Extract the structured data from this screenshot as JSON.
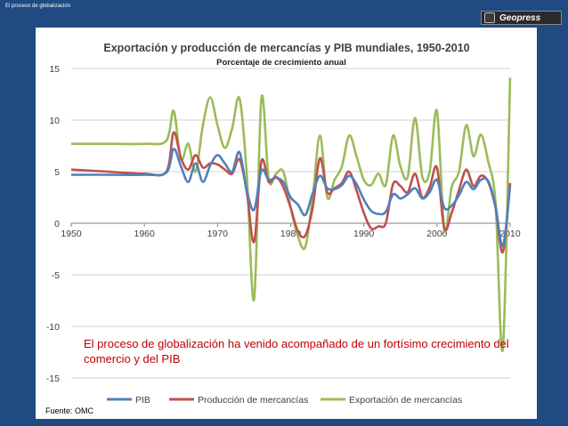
{
  "slide": {
    "title": "El proceso de globalización",
    "logo": "Geopress"
  },
  "source": "Fuente: OMC",
  "annotation": "El proceso de globalización ha venido acompañado de un fortísimo crecimiento del comercio y del PIB",
  "chart_data": {
    "type": "line",
    "title": "Exportación y producción de mercancías y PIB mundiales, 1950-2010",
    "subtitle": "Porcentaje de crecimiento anual",
    "xlabel": "",
    "ylabel": "",
    "xlim": [
      1950,
      2010
    ],
    "ylim": [
      -15,
      15
    ],
    "x_ticks": [
      1950,
      1960,
      1970,
      1980,
      1990,
      2000,
      2010
    ],
    "y_ticks": [
      15,
      10,
      5,
      0,
      -5,
      -10,
      -15
    ],
    "grid": true,
    "legend_position": "bottom",
    "series": [
      {
        "name": "PIB",
        "color": "#4f81bd",
        "points": [
          [
            1950,
            4.7
          ],
          [
            1955,
            4.7
          ],
          [
            1960,
            4.7
          ],
          [
            1963,
            4.9
          ],
          [
            1964,
            7.2
          ],
          [
            1965,
            5.5
          ],
          [
            1966,
            4.0
          ],
          [
            1967,
            5.8
          ],
          [
            1968,
            4.0
          ],
          [
            1969,
            5.6
          ],
          [
            1970,
            6.6
          ],
          [
            1971,
            5.8
          ],
          [
            1972,
            5.0
          ],
          [
            1973,
            6.9
          ],
          [
            1974,
            3.2
          ],
          [
            1975,
            1.3
          ],
          [
            1976,
            5.1
          ],
          [
            1977,
            4.2
          ],
          [
            1978,
            4.4
          ],
          [
            1979,
            4.0
          ],
          [
            1980,
            2.5
          ],
          [
            1981,
            1.8
          ],
          [
            1982,
            0.8
          ],
          [
            1983,
            2.9
          ],
          [
            1984,
            4.6
          ],
          [
            1985,
            3.4
          ],
          [
            1986,
            3.3
          ],
          [
            1987,
            3.7
          ],
          [
            1988,
            4.6
          ],
          [
            1989,
            3.8
          ],
          [
            1990,
            2.3
          ],
          [
            1991,
            1.2
          ],
          [
            1992,
            0.9
          ],
          [
            1993,
            1.1
          ],
          [
            1994,
            2.8
          ],
          [
            1995,
            2.4
          ],
          [
            1996,
            2.8
          ],
          [
            1997,
            3.4
          ],
          [
            1998,
            2.4
          ],
          [
            1999,
            3.0
          ],
          [
            2000,
            4.2
          ],
          [
            2001,
            1.5
          ],
          [
            2002,
            1.7
          ],
          [
            2003,
            2.7
          ],
          [
            2004,
            4.0
          ],
          [
            2005,
            3.3
          ],
          [
            2006,
            4.2
          ],
          [
            2007,
            4.1
          ],
          [
            2008,
            1.7
          ],
          [
            2009,
            -2.2
          ],
          [
            2010,
            3.6
          ]
        ]
      },
      {
        "name": "Producción de mercancías",
        "color": "#c0504d",
        "points": [
          [
            1950,
            5.2
          ],
          [
            1955,
            5.0
          ],
          [
            1960,
            4.8
          ],
          [
            1963,
            5.0
          ],
          [
            1964,
            8.8
          ],
          [
            1965,
            6.3
          ],
          [
            1966,
            5.2
          ],
          [
            1967,
            6.6
          ],
          [
            1968,
            5.4
          ],
          [
            1969,
            5.8
          ],
          [
            1970,
            5.7
          ],
          [
            1971,
            5.2
          ],
          [
            1972,
            4.8
          ],
          [
            1973,
            6.2
          ],
          [
            1974,
            3.0
          ],
          [
            1975,
            -1.8
          ],
          [
            1976,
            6.0
          ],
          [
            1977,
            4.0
          ],
          [
            1978,
            4.5
          ],
          [
            1979,
            3.5
          ],
          [
            1980,
            1.5
          ],
          [
            1981,
            -0.8
          ],
          [
            1982,
            -1.2
          ],
          [
            1983,
            1.5
          ],
          [
            1984,
            6.3
          ],
          [
            1985,
            3.0
          ],
          [
            1986,
            3.4
          ],
          [
            1987,
            3.9
          ],
          [
            1988,
            5.0
          ],
          [
            1989,
            3.2
          ],
          [
            1990,
            1.0
          ],
          [
            1991,
            -0.5
          ],
          [
            1992,
            -0.3
          ],
          [
            1993,
            0.0
          ],
          [
            1994,
            3.8
          ],
          [
            1995,
            3.6
          ],
          [
            1996,
            3.0
          ],
          [
            1997,
            4.8
          ],
          [
            1998,
            2.5
          ],
          [
            1999,
            3.5
          ],
          [
            2000,
            5.4
          ],
          [
            2001,
            -0.5
          ],
          [
            2002,
            1.0
          ],
          [
            2003,
            3.2
          ],
          [
            2004,
            5.2
          ],
          [
            2005,
            3.6
          ],
          [
            2006,
            4.6
          ],
          [
            2007,
            4.0
          ],
          [
            2008,
            1.5
          ],
          [
            2009,
            -2.8
          ],
          [
            2010,
            3.9
          ]
        ]
      },
      {
        "name": "Exportación de mercancías",
        "color": "#9bbb59",
        "points": [
          [
            1950,
            7.7
          ],
          [
            1955,
            7.7
          ],
          [
            1960,
            7.7
          ],
          [
            1963,
            8.0
          ],
          [
            1964,
            10.9
          ],
          [
            1965,
            6.2
          ],
          [
            1966,
            7.7
          ],
          [
            1967,
            5.0
          ],
          [
            1968,
            9.5
          ],
          [
            1969,
            12.2
          ],
          [
            1970,
            9.5
          ],
          [
            1971,
            7.3
          ],
          [
            1972,
            9.2
          ],
          [
            1973,
            12.1
          ],
          [
            1974,
            4.7
          ],
          [
            1975,
            -7.4
          ],
          [
            1976,
            12.1
          ],
          [
            1977,
            4.2
          ],
          [
            1978,
            4.8
          ],
          [
            1979,
            5.0
          ],
          [
            1980,
            1.5
          ],
          [
            1981,
            -1.3
          ],
          [
            1982,
            -2.3
          ],
          [
            1983,
            2.5
          ],
          [
            1984,
            8.5
          ],
          [
            1985,
            2.5
          ],
          [
            1986,
            4.2
          ],
          [
            1987,
            5.5
          ],
          [
            1988,
            8.5
          ],
          [
            1989,
            6.5
          ],
          [
            1990,
            4.2
          ],
          [
            1991,
            3.7
          ],
          [
            1992,
            4.8
          ],
          [
            1993,
            3.7
          ],
          [
            1994,
            8.5
          ],
          [
            1995,
            5.5
          ],
          [
            1996,
            4.5
          ],
          [
            1997,
            10.2
          ],
          [
            1998,
            4.5
          ],
          [
            1999,
            5.0
          ],
          [
            2000,
            10.9
          ],
          [
            2001,
            -0.7
          ],
          [
            2002,
            3.5
          ],
          [
            2003,
            5.0
          ],
          [
            2004,
            9.5
          ],
          [
            2005,
            6.5
          ],
          [
            2006,
            8.6
          ],
          [
            2007,
            6.0
          ],
          [
            2008,
            2.0
          ],
          [
            2009,
            -12.2
          ],
          [
            2010,
            14.1
          ]
        ]
      }
    ]
  }
}
